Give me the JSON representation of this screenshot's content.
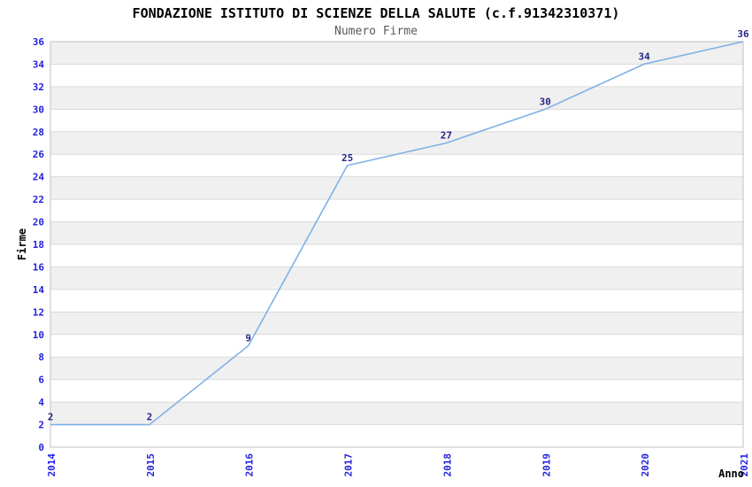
{
  "chart_data": {
    "type": "line",
    "title": "FONDAZIONE ISTITUTO DI SCIENZE DELLA SALUTE (c.f.91342310371)",
    "subtitle": "Numero Firme",
    "xlabel": "Anno",
    "ylabel": "Firme",
    "categories": [
      "2014",
      "2015",
      "2016",
      "2017",
      "2018",
      "2019",
      "2020",
      "2021"
    ],
    "values": [
      2,
      2,
      9,
      25,
      27,
      30,
      34,
      36
    ],
    "ylim": [
      0,
      36
    ],
    "y_ticks": [
      0,
      2,
      4,
      6,
      8,
      10,
      12,
      14,
      16,
      18,
      20,
      22,
      24,
      26,
      28,
      30,
      32,
      34,
      36
    ],
    "grid": "horizontal-striped-bands",
    "legend": "none",
    "x_tick_rotation": -90,
    "colors": {
      "line": "#7FB0E6",
      "data_label": "#26268B",
      "tick_label": "#2222DD",
      "band": "#F0F0F0",
      "grid_line": "#DADADA",
      "plot_border": "#C0C0C0",
      "title": "#000000",
      "subtitle": "#5A5A5A",
      "axis_title": "#000000",
      "background": "#FFFFFF"
    }
  }
}
